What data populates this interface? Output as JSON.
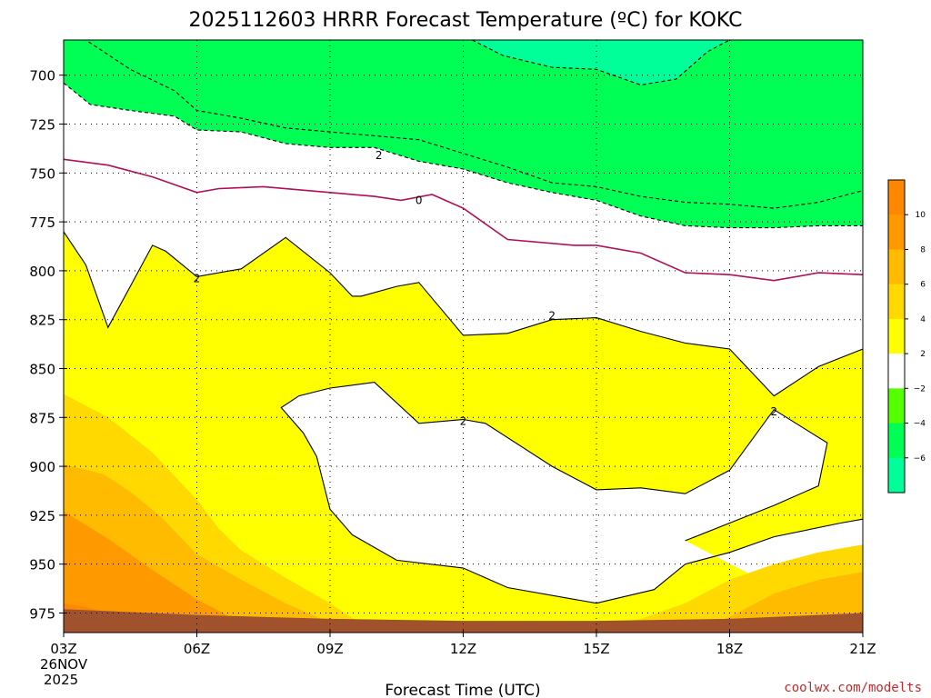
{
  "title": "2025112603 HRRR Forecast Temperature (ºC) for KOKC",
  "source": "coolwx.com/modelts",
  "colors": {
    "below_minus6": "#00ff99",
    "minus6_to_minus4": "#00ff55",
    "minus4_to_minus2": "#55ff00",
    "minus2_to_2": "#ffffff",
    "2_to_4": "#ffff00",
    "4_to_6": "#ffd900",
    "6_to_8": "#ffbb00",
    "8_to_10": "#ff9900",
    "above_10": "#ff8800",
    "ground": "#a0522d",
    "freezing_line": "#b0105a"
  },
  "chart_data": {
    "type": "contour",
    "title": "2025112603 HRRR Forecast Temperature (ºC) for KOKC",
    "xlabel": "Forecast Time (UTC)",
    "ylabel": "",
    "x_ticks": [
      "03Z",
      "06Z",
      "09Z",
      "12Z",
      "15Z",
      "18Z",
      "21Z"
    ],
    "x_start_date": [
      "26NOV",
      "2025"
    ],
    "x_range_hours": [
      3,
      21
    ],
    "y_ticks": [
      700,
      725,
      750,
      775,
      800,
      825,
      850,
      875,
      900,
      925,
      950,
      975
    ],
    "y_range_hPa": [
      682,
      985
    ],
    "y_reversed": true,
    "grid": true,
    "colorbar": {
      "levels": [
        -6,
        -4,
        -2,
        2,
        4,
        6,
        8,
        10
      ],
      "labels": [
        "10",
        "8",
        "6",
        "4",
        "2",
        "−2",
        "−4",
        "−6"
      ],
      "colors": [
        "#00ff99",
        "#00ff55",
        "#55ff00",
        "#ffffff",
        "#ffff00",
        "#ffd900",
        "#ffbb00",
        "#ff9900",
        "#ff8800"
      ]
    },
    "contour_labels": [
      {
        "text": "2",
        "hour": 10.1,
        "hPa": 741
      },
      {
        "text": "0",
        "hour": 11.0,
        "hPa": 764
      },
      {
        "text": "2",
        "hour": 6.0,
        "hPa": 804
      },
      {
        "text": "2",
        "hour": 14.0,
        "hPa": 823
      },
      {
        "text": "2",
        "hour": 12.0,
        "hPa": 877
      },
      {
        "text": "2",
        "hour": 19.0,
        "hPa": 872
      }
    ],
    "series": [
      {
        "level": -6,
        "region": "below",
        "points": [
          [
            12.2,
            682
          ],
          [
            12.9,
            690
          ],
          [
            14.0,
            696
          ],
          [
            15.0,
            697
          ],
          [
            16.0,
            705
          ],
          [
            16.8,
            702
          ],
          [
            17.5,
            688
          ],
          [
            18.0,
            682
          ]
        ]
      },
      {
        "level": -4,
        "region": "below",
        "points": [
          [
            3.0,
            704
          ],
          [
            3.6,
            715
          ],
          [
            4.5,
            718
          ],
          [
            5.5,
            721
          ],
          [
            6.0,
            728
          ],
          [
            7.0,
            729
          ],
          [
            8.0,
            735
          ],
          [
            9.0,
            737
          ],
          [
            10.0,
            737
          ],
          [
            11.0,
            744
          ],
          [
            12.0,
            748
          ],
          [
            13.0,
            755
          ],
          [
            14.0,
            760
          ],
          [
            15.0,
            764
          ],
          [
            16.0,
            772
          ],
          [
            17.0,
            777
          ],
          [
            18.0,
            778
          ],
          [
            19.0,
            778
          ],
          [
            20.0,
            777
          ],
          [
            21.0,
            777
          ]
        ]
      },
      {
        "level": -2,
        "region": "below",
        "points": [
          [
            3.0,
            682
          ],
          [
            3.5,
            682
          ],
          [
            4.5,
            697
          ],
          [
            5.5,
            708
          ],
          [
            6.0,
            718
          ],
          [
            7.0,
            722
          ],
          [
            8.0,
            727
          ],
          [
            9.0,
            729
          ],
          [
            10.0,
            731
          ],
          [
            11.0,
            733
          ],
          [
            12.0,
            740
          ],
          [
            13.0,
            747
          ],
          [
            14.0,
            755
          ],
          [
            15.0,
            757
          ],
          [
            16.0,
            762
          ],
          [
            17.0,
            765
          ],
          [
            18.0,
            766
          ],
          [
            19.0,
            768
          ],
          [
            20.0,
            765
          ],
          [
            21.0,
            759
          ]
        ]
      },
      {
        "level": 0,
        "region": "freezing",
        "points": [
          [
            3.0,
            743
          ],
          [
            4.0,
            746
          ],
          [
            5.0,
            752
          ],
          [
            6.0,
            760
          ],
          [
            6.5,
            758
          ],
          [
            7.5,
            757
          ],
          [
            9.0,
            760
          ],
          [
            10.0,
            762
          ],
          [
            10.6,
            764
          ],
          [
            11.3,
            761
          ],
          [
            12.0,
            768
          ],
          [
            13.0,
            784
          ],
          [
            14.5,
            787
          ],
          [
            15.0,
            787
          ],
          [
            16.0,
            791
          ],
          [
            17.0,
            801
          ],
          [
            18.0,
            802
          ],
          [
            19.0,
            805
          ],
          [
            20.0,
            801
          ],
          [
            21.0,
            802
          ]
        ]
      },
      {
        "level": 2,
        "region": "upper",
        "points": [
          [
            3.0,
            780
          ],
          [
            3.5,
            797
          ],
          [
            4.0,
            829
          ],
          [
            4.5,
            808
          ],
          [
            5.0,
            787
          ],
          [
            5.3,
            790
          ],
          [
            6.0,
            803
          ],
          [
            7.0,
            799
          ],
          [
            8.0,
            783
          ],
          [
            9.0,
            801
          ],
          [
            9.5,
            813
          ],
          [
            9.7,
            813
          ],
          [
            10.5,
            808
          ],
          [
            11.0,
            806
          ],
          [
            12.0,
            833
          ],
          [
            13.0,
            832
          ],
          [
            14.0,
            825
          ],
          [
            15.0,
            824
          ],
          [
            16.0,
            831
          ],
          [
            17.0,
            837
          ],
          [
            18.0,
            840
          ],
          [
            18.5,
            852
          ],
          [
            19.0,
            864
          ],
          [
            20.0,
            849
          ],
          [
            21.0,
            840
          ]
        ]
      },
      {
        "level": 2,
        "region": "warm_lower",
        "points": [
          [
            21.0,
            927
          ],
          [
            20.5,
            929
          ],
          [
            19.0,
            936
          ],
          [
            18.0,
            944
          ],
          [
            17.0,
            950
          ],
          [
            16.3,
            963
          ],
          [
            15.0,
            970
          ],
          [
            14.5,
            968
          ],
          [
            13.0,
            962
          ],
          [
            12.0,
            952
          ],
          [
            10.5,
            948
          ],
          [
            9.5,
            935
          ],
          [
            9.0,
            922
          ],
          [
            8.7,
            895
          ],
          [
            8.4,
            883
          ],
          [
            7.9,
            870
          ],
          [
            8.3,
            864
          ],
          [
            9.0,
            860
          ],
          [
            10.0,
            857
          ],
          [
            11.0,
            878
          ],
          [
            12.0,
            876
          ],
          [
            12.5,
            878
          ],
          [
            14.0,
            900
          ],
          [
            15.0,
            912
          ],
          [
            16.0,
            911
          ],
          [
            17.0,
            914
          ],
          [
            18.0,
            902
          ],
          [
            19.0,
            871
          ],
          [
            20.2,
            888
          ],
          [
            20.0,
            910
          ],
          [
            19.0,
            920
          ],
          [
            18.0,
            929
          ],
          [
            17.0,
            938
          ]
        ]
      }
    ]
  }
}
